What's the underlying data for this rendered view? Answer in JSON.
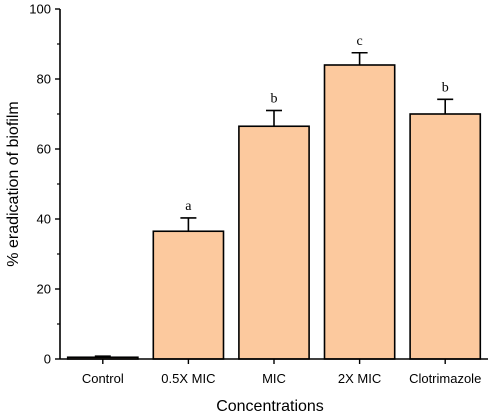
{
  "chart_data": {
    "type": "bar",
    "title": "",
    "xlabel": "Concentrations",
    "ylabel": "% eradication of biofilm",
    "categories": [
      "Control",
      "0.5X MIC",
      "MIC",
      "2X MIC",
      "Clotrimazole"
    ],
    "values": [
      0.5,
      36.5,
      66.5,
      84,
      70
    ],
    "errors": [
      0.3,
      3.8,
      4.5,
      3.5,
      4.2
    ],
    "significance_labels": [
      "",
      "a",
      "b",
      "c",
      "b"
    ],
    "ylim": [
      0,
      100
    ],
    "yticks": [
      0,
      20,
      40,
      60,
      80,
      100
    ],
    "grid": false,
    "legend": "none",
    "bar_color": "#FCC99E",
    "edge_color": "#000000"
  }
}
